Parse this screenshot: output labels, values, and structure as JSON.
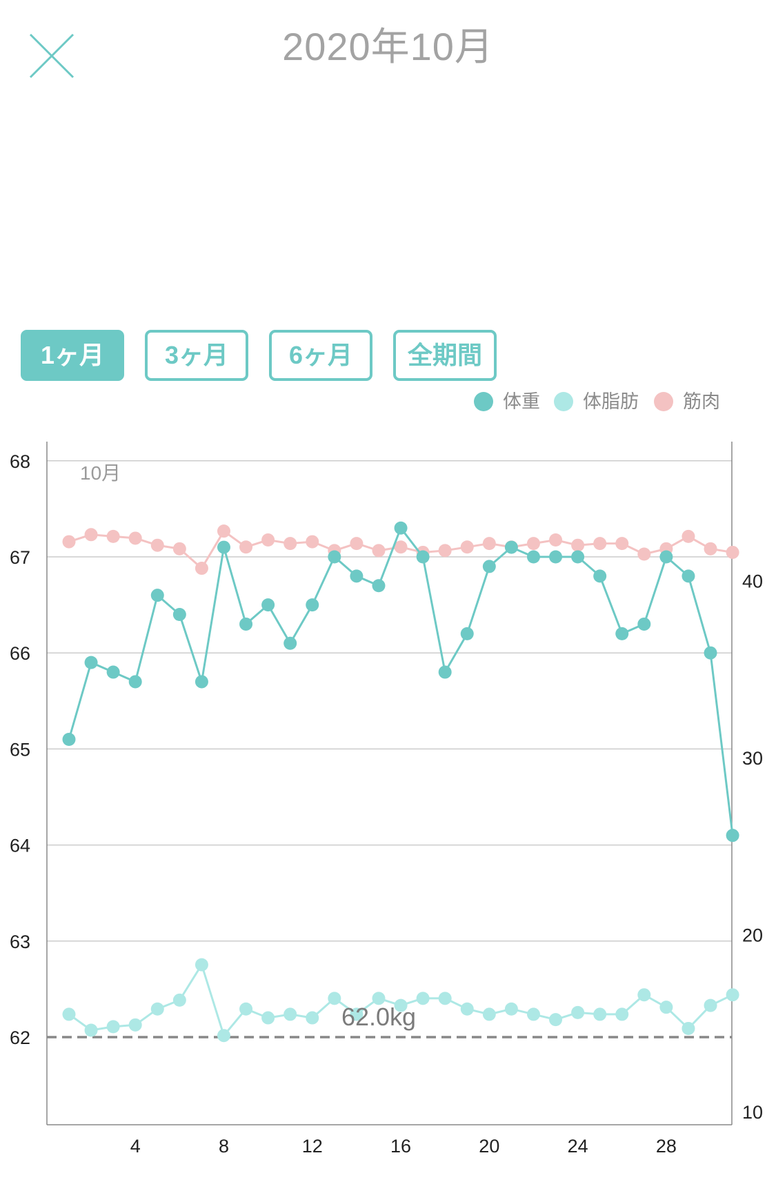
{
  "header": {
    "title": "2020年10月"
  },
  "tabs": [
    {
      "label": "1ヶ月",
      "active": true
    },
    {
      "label": "3ヶ月",
      "active": false
    },
    {
      "label": "6ヶ月",
      "active": false
    },
    {
      "label": "全期間",
      "active": false
    }
  ],
  "legend": [
    {
      "label": "体重",
      "color": "#6dc9c5"
    },
    {
      "label": "体脂肪",
      "color": "#ade8e5"
    },
    {
      "label": "筋肉",
      "color": "#f4c2c2"
    }
  ],
  "colors": {
    "accent": "#6dc9c5",
    "weight": "#6dc9c5",
    "body_fat": "#ade8e5",
    "muscle": "#f4c2c2",
    "grid": "#cccccc",
    "target_line": "#888888"
  },
  "icons": {
    "close": "close-icon"
  },
  "chart_data": {
    "type": "line",
    "month_label": "10月",
    "target_label": "62.0kg",
    "target_value": 62.0,
    "x": [
      1,
      2,
      3,
      4,
      5,
      6,
      7,
      8,
      9,
      10,
      11,
      12,
      13,
      14,
      15,
      16,
      17,
      18,
      19,
      20,
      21,
      22,
      23,
      24,
      25,
      26,
      27,
      28,
      29,
      30,
      31
    ],
    "x_ticks": [
      4,
      8,
      12,
      16,
      20,
      24,
      28
    ],
    "x_tick_labels": [
      "4",
      "8",
      "12",
      "16",
      "20",
      "24",
      "28"
    ],
    "y_left_ticks": [
      62,
      63,
      64,
      65,
      66,
      67,
      68
    ],
    "y_left_tick_labels": [
      "62",
      "63",
      "64",
      "65",
      "66",
      "67",
      "68"
    ],
    "y_left_range": [
      61.1,
      68.2
    ],
    "y_right_ticks": [
      10,
      20,
      30,
      40
    ],
    "y_right_tick_labels": [
      "10",
      "20",
      "30",
      "40"
    ],
    "y_right_range": [
      9.9,
      44.8
    ],
    "grid": true,
    "legend_position": "top-right",
    "series": [
      {
        "name": "体重",
        "axis": "left",
        "color": "#6dc9c5",
        "values": [
          65.1,
          65.9,
          65.8,
          65.7,
          66.6,
          66.4,
          65.7,
          67.1,
          66.3,
          66.5,
          66.1,
          66.5,
          67.0,
          66.8,
          66.7,
          67.3,
          67.0,
          65.8,
          66.2,
          66.9,
          67.1,
          67.0,
          67.0,
          67.0,
          66.8,
          66.2,
          66.3,
          67.0,
          66.8,
          66.0,
          64.1
        ]
      },
      {
        "name": "体脂肪",
        "axis": "right",
        "color": "#ade8e5",
        "values": [
          15.5,
          14.6,
          14.8,
          14.9,
          15.8,
          16.3,
          18.3,
          14.3,
          15.8,
          15.3,
          15.5,
          15.3,
          16.4,
          15.5,
          16.4,
          16.0,
          16.4,
          16.4,
          15.8,
          15.5,
          15.8,
          15.5,
          15.2,
          15.6,
          15.5,
          15.5,
          16.6,
          15.9,
          14.7,
          16.0,
          16.6
        ]
      },
      {
        "name": "筋肉",
        "axis": "right",
        "color": "#f4c2c2",
        "values": [
          42.2,
          42.6,
          42.5,
          42.4,
          42.0,
          41.8,
          40.7,
          42.8,
          41.9,
          42.3,
          42.1,
          42.2,
          41.7,
          42.1,
          41.7,
          41.9,
          41.6,
          41.7,
          41.9,
          42.1,
          41.9,
          42.1,
          42.3,
          42.0,
          42.1,
          42.1,
          41.5,
          41.8,
          42.5,
          41.8,
          41.6
        ]
      }
    ]
  }
}
